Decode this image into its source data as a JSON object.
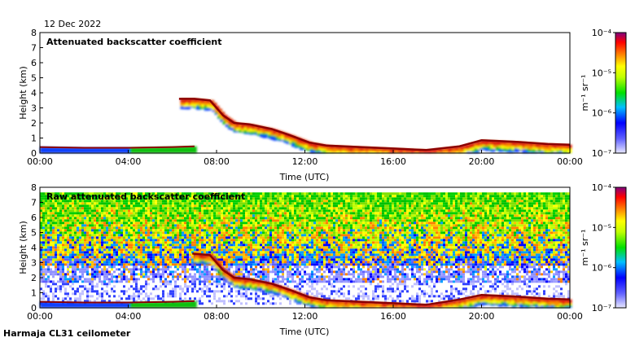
{
  "date": "12 Dec 2022",
  "footer": "Harmaja CL31 ceilometer",
  "colors": {
    "echo_dark": "#8b0000",
    "echo_red": "#e01010",
    "echo_orange": "#ff8c00",
    "echo_yellow": "#ffff00",
    "echo_green": "#10c010",
    "echo_blue": "#1040ff",
    "faint_blue": "#c8c8ff"
  },
  "chart_data": [
    {
      "type": "heatmap",
      "title": "Attenuated backscatter coefficient",
      "xlabel": "Time (UTC)",
      "ylabel": "Height (km)",
      "xticks": [
        "00:00",
        "04:00",
        "08:00",
        "12:00",
        "16:00",
        "20:00",
        "00:00"
      ],
      "xlim_hours": [
        0,
        24
      ],
      "ylim_km": [
        0,
        8
      ],
      "yticks": [
        "0",
        "1",
        "2",
        "3",
        "4",
        "5",
        "6",
        "7",
        "8"
      ],
      "colorbar": {
        "unit_label": "m⁻¹ sr⁻¹",
        "tick_labels": [
          "10⁻⁴",
          "10⁻⁵",
          "10⁻⁶",
          "10⁻⁷"
        ],
        "range_log10": [
          -7,
          -4
        ]
      },
      "cloud_layer_km": [
        {
          "t": 6.3,
          "h": 3.6
        },
        {
          "t": 7.0,
          "h": 3.6
        },
        {
          "t": 7.7,
          "h": 3.5
        },
        {
          "t": 8.3,
          "h": 2.5
        },
        {
          "t": 8.8,
          "h": 2.0
        },
        {
          "t": 9.5,
          "h": 1.9
        },
        {
          "t": 10.5,
          "h": 1.6
        },
        {
          "t": 11.3,
          "h": 1.2
        },
        {
          "t": 12.2,
          "h": 0.7
        },
        {
          "t": 13.0,
          "h": 0.5
        },
        {
          "t": 14.5,
          "h": 0.4
        },
        {
          "t": 16.0,
          "h": 0.3
        },
        {
          "t": 17.5,
          "h": 0.2
        },
        {
          "t": 19.0,
          "h": 0.45
        },
        {
          "t": 20.0,
          "h": 0.85
        },
        {
          "t": 21.5,
          "h": 0.75
        },
        {
          "t": 23.0,
          "h": 0.6
        },
        {
          "t": 24.0,
          "h": 0.55
        }
      ],
      "surface_layer_km": [
        {
          "t": 0.0,
          "h": 0.4
        },
        {
          "t": 2.0,
          "h": 0.35
        },
        {
          "t": 4.0,
          "h": 0.35
        },
        {
          "t": 6.0,
          "h": 0.4
        },
        {
          "t": 7.0,
          "h": 0.45
        }
      ]
    },
    {
      "type": "heatmap",
      "title": "Raw attenuated backscatter coefficient",
      "xlabel": "Time (UTC)",
      "ylabel": "Height (km)",
      "xticks": [
        "00:00",
        "04:00",
        "08:00",
        "12:00",
        "16:00",
        "20:00",
        "00:00"
      ],
      "xlim_hours": [
        0,
        24
      ],
      "ylim_km": [
        0,
        8
      ],
      "yticks": [
        "0",
        "1",
        "2",
        "3",
        "4",
        "5",
        "6",
        "7",
        "8"
      ],
      "colorbar": {
        "unit_label": "m⁻¹ sr⁻¹",
        "tick_labels": [
          "10⁻⁴",
          "10⁻⁵",
          "10⁻⁶",
          "10⁻⁷"
        ],
        "range_log10": [
          -7,
          -4
        ]
      },
      "noise_top_km": 7.6,
      "cloud_layer_km": [
        {
          "t": 6.9,
          "h": 3.6
        },
        {
          "t": 7.7,
          "h": 3.5
        },
        {
          "t": 8.3,
          "h": 2.5
        },
        {
          "t": 8.8,
          "h": 2.0
        },
        {
          "t": 9.5,
          "h": 1.9
        },
        {
          "t": 10.5,
          "h": 1.6
        },
        {
          "t": 11.3,
          "h": 1.2
        },
        {
          "t": 12.2,
          "h": 0.7
        },
        {
          "t": 13.0,
          "h": 0.5
        },
        {
          "t": 14.5,
          "h": 0.4
        },
        {
          "t": 16.0,
          "h": 0.3
        },
        {
          "t": 17.5,
          "h": 0.2
        },
        {
          "t": 19.0,
          "h": 0.55
        },
        {
          "t": 20.0,
          "h": 0.85
        },
        {
          "t": 21.5,
          "h": 0.75
        },
        {
          "t": 23.0,
          "h": 0.6
        },
        {
          "t": 24.0,
          "h": 0.55
        }
      ],
      "surface_layer_km": [
        {
          "t": 0.0,
          "h": 0.4
        },
        {
          "t": 2.0,
          "h": 0.35
        },
        {
          "t": 4.0,
          "h": 0.35
        },
        {
          "t": 6.0,
          "h": 0.4
        },
        {
          "t": 7.0,
          "h": 0.45
        }
      ]
    }
  ]
}
